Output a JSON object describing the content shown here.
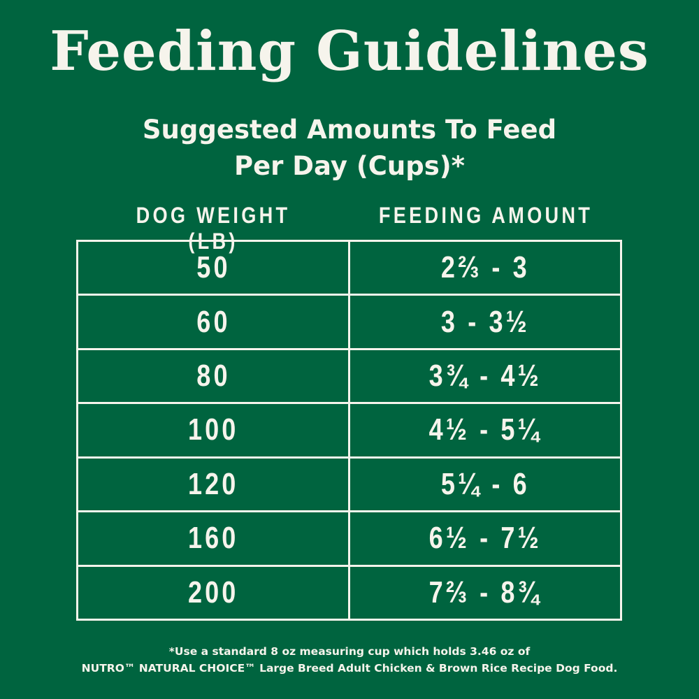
{
  "title": "Feeding Guidelines",
  "subtitle_line1": "Suggested Amounts To Feed",
  "subtitle_line2": "Per Day (Cups)*",
  "columns": [
    "DOG WEIGHT (LB)",
    "FEEDING AMOUNT"
  ],
  "rows": [
    {
      "weight": "50",
      "amount": "2⅔ - 3"
    },
    {
      "weight": "60",
      "amount": "3 - 3½"
    },
    {
      "weight": "80",
      "amount": "3¾ - 4½"
    },
    {
      "weight": "100",
      "amount": "4½ - 5¼"
    },
    {
      "weight": "120",
      "amount": "5¼ - 6"
    },
    {
      "weight": "160",
      "amount": "6½ - 7½"
    },
    {
      "weight": "200",
      "amount": "7⅔ - 8¾"
    }
  ],
  "footnote_line1": "*Use a standard 8 oz measuring cup which holds 3.46 oz of",
  "footnote_line2": "NUTRO™ NATURAL CHOICE™ Large Breed Adult Chicken & Brown Rice Recipe Dog Food.",
  "colors": {
    "background": "#00643f",
    "text": "#f6f4ec"
  }
}
